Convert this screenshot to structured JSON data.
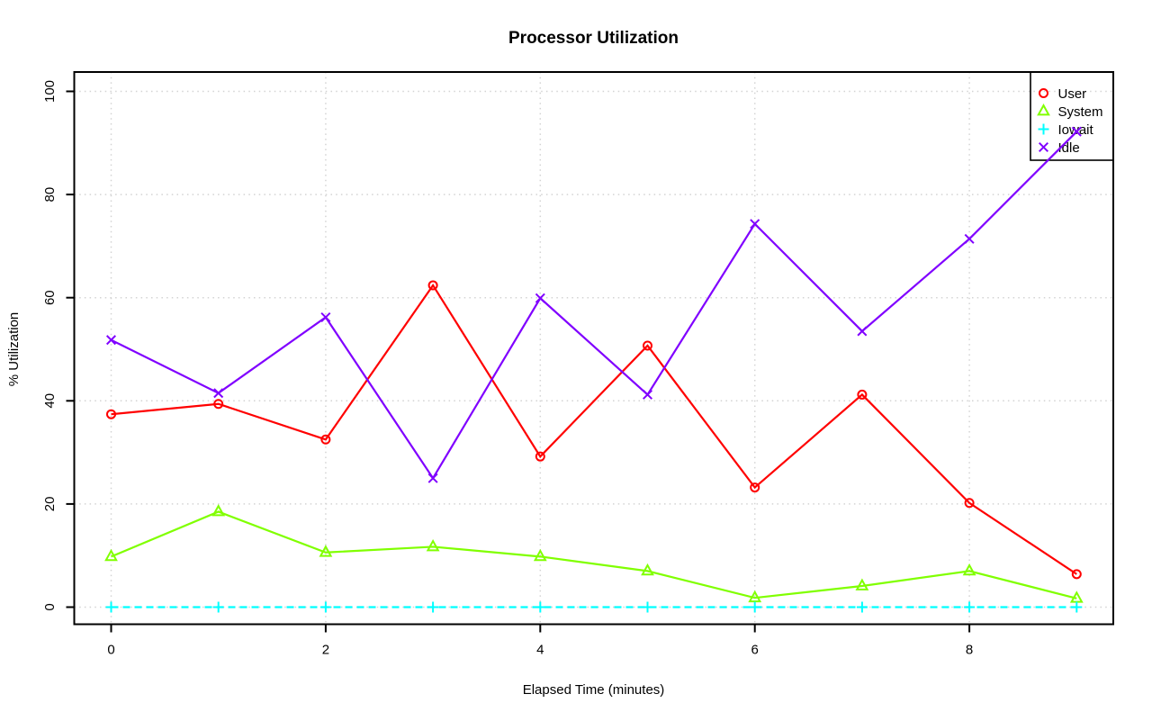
{
  "page": {
    "background": "#FFFFFF"
  },
  "chart_data": {
    "type": "line",
    "title": "Processor Utilization",
    "xlabel": "Elapsed Time (minutes)",
    "ylabel": "% Utilization",
    "x": [
      0,
      1,
      2,
      3,
      4,
      5,
      6,
      7,
      8,
      9
    ],
    "x_ticks": [
      0,
      2,
      4,
      6,
      8
    ],
    "y_ticks": [
      0,
      20,
      40,
      60,
      80,
      100
    ],
    "xlim": [
      0,
      9
    ],
    "ylim": [
      0,
      100
    ],
    "grid": "dotted",
    "grid_color": "#D3D3D3",
    "axis_color": "#000000",
    "legend_position": "topright",
    "series": [
      {
        "name": "User",
        "color": "#FF0000",
        "marker": "circle",
        "line_style": "solid",
        "values": [
          37.4,
          39.4,
          32.5,
          62.4,
          29.2,
          50.7,
          23.2,
          41.2,
          20.2,
          6.4
        ]
      },
      {
        "name": "System",
        "color": "#80FF00",
        "marker": "triangle",
        "line_style": "solid",
        "values": [
          9.8,
          18.5,
          10.6,
          11.7,
          9.8,
          7.0,
          1.8,
          4.1,
          7.0,
          1.7
        ]
      },
      {
        "name": "Iowait",
        "color": "#00FFFF",
        "marker": "plus",
        "line_style": "dashed",
        "values": [
          0,
          0,
          0,
          0,
          0,
          0,
          0,
          0,
          0,
          0
        ]
      },
      {
        "name": "Idle",
        "color": "#8000FF",
        "marker": "x",
        "line_style": "solid",
        "values": [
          51.8,
          41.5,
          56.2,
          25.0,
          59.9,
          41.2,
          74.3,
          53.5,
          71.4,
          92.2
        ]
      }
    ]
  }
}
